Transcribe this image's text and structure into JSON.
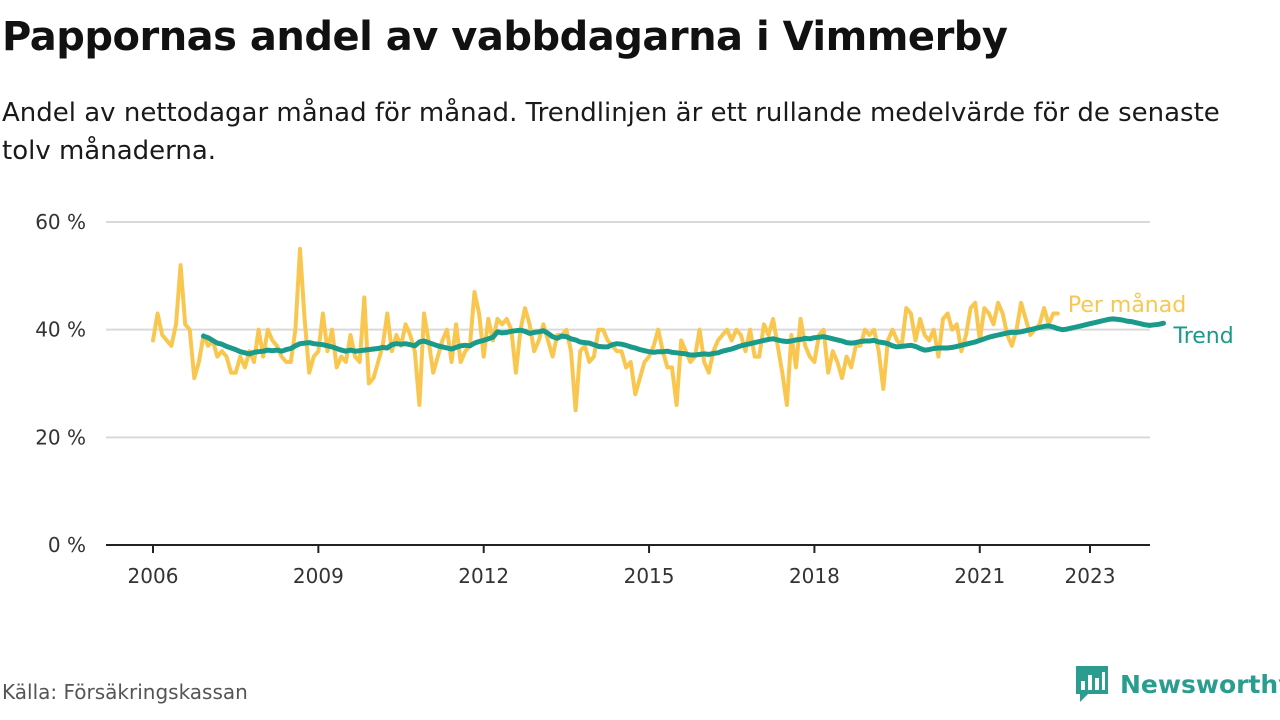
{
  "header": {
    "title": "Pappornas andel av vabbdagarna i Vimmerby",
    "subtitle": "Andel av nettodagar månad för månad. Trendlinjen är ett rullande medelvärde för de senaste tolv månaderna."
  },
  "footer": {
    "source": "Källa: Försäkringskassan",
    "brand": "Newsworthy",
    "brand_icon": "bar-chart-speech-bubble-icon"
  },
  "colors": {
    "monthly": "#f9c74f",
    "trend": "#1a9a8a",
    "grid": "#d9d9d9",
    "axis": "#222222",
    "brand": "#2a9d8f"
  },
  "chart_data": {
    "type": "line",
    "title": "Pappornas andel av vabbdagarna i Vimmerby",
    "subtitle": "Andel av nettodagar månad för månad. Trendlinjen är ett rullande medelvärde för de senaste tolv månaderna.",
    "xlabel": "",
    "ylabel": "",
    "ylim": [
      0,
      60
    ],
    "xlim": [
      2005.0,
      2024.1
    ],
    "y_ticks": [
      0,
      20,
      40,
      60
    ],
    "y_tick_labels": [
      "0 %",
      "20 %",
      "40 %",
      "60 %"
    ],
    "x_ticks": [
      2006,
      2009,
      2012,
      2015,
      2018,
      2021,
      2023
    ],
    "x_tick_labels": [
      "2006",
      "2009",
      "2012",
      "2015",
      "2018",
      "2021",
      "2023"
    ],
    "grid": "horizontal",
    "legend": "direct labels at right end of lines",
    "series": [
      {
        "name": "Per månad",
        "x_start": "2006-01",
        "frequency": "monthly",
        "values": [
          38,
          43,
          39,
          38,
          37,
          41,
          52,
          41,
          40,
          31,
          34,
          39,
          37,
          38,
          35,
          36,
          35,
          32,
          32,
          35,
          33,
          36,
          34,
          40,
          35,
          40,
          38,
          37,
          35,
          34,
          34,
          40,
          55,
          42,
          32,
          35,
          36,
          43,
          36,
          40,
          33,
          35,
          34,
          39,
          35,
          34,
          46,
          30,
          31,
          34,
          37,
          43,
          36,
          39,
          37,
          41,
          39,
          36,
          26,
          43,
          38,
          32,
          35,
          38,
          40,
          34,
          41,
          34,
          36,
          37,
          47,
          43,
          35,
          42,
          38,
          42,
          41,
          42,
          40,
          32,
          40,
          44,
          41,
          36,
          38,
          41,
          38,
          35,
          39,
          39,
          40,
          36,
          25,
          36,
          37,
          34,
          35,
          40,
          40,
          38,
          37,
          36,
          36,
          33,
          34,
          28,
          31,
          34,
          35,
          37,
          40,
          36,
          33,
          33,
          26,
          38,
          36,
          34,
          35,
          40,
          34,
          32,
          36,
          38,
          39,
          40,
          38,
          40,
          39,
          36,
          40,
          35,
          35,
          41,
          39,
          42,
          37,
          32,
          26,
          39,
          33,
          42,
          37,
          35,
          34,
          39,
          40,
          32,
          36,
          34,
          31,
          35,
          33,
          37,
          37,
          40,
          39,
          40,
          36,
          29,
          38,
          40,
          38,
          37,
          44,
          43,
          38,
          42,
          39,
          38,
          40,
          35,
          42,
          43,
          40,
          41,
          36,
          39,
          44,
          45,
          38,
          44,
          43,
          41,
          45,
          43,
          39,
          37,
          40,
          45,
          42,
          39,
          40,
          41,
          44,
          41,
          43,
          43
        ]
      },
      {
        "name": "Trend",
        "x_start": "2006-12",
        "frequency": "monthly",
        "values": [
          38.8,
          38.5,
          38.0,
          37.5,
          37.3,
          36.9,
          36.6,
          36.3,
          35.9,
          35.7,
          35.5,
          35.8,
          35.9,
          36.0,
          36.2,
          36.1,
          36.2,
          36.0,
          36.3,
          36.5,
          37.0,
          37.4,
          37.5,
          37.6,
          37.4,
          37.3,
          37.2,
          37.0,
          36.8,
          36.5,
          36.2,
          36.0,
          36.2,
          36.0,
          36.1,
          36.2,
          36.3,
          36.4,
          36.5,
          36.7,
          36.6,
          37.2,
          37.4,
          37.3,
          37.4,
          37.2,
          37.0,
          37.7,
          37.9,
          37.6,
          37.3,
          37.0,
          36.8,
          36.6,
          36.4,
          36.7,
          37.0,
          37.1,
          37.0,
          37.5,
          37.8,
          38.0,
          38.3,
          38.6,
          39.6,
          39.4,
          39.5,
          39.7,
          39.8,
          39.9,
          39.7,
          39.3,
          39.5,
          39.6,
          39.8,
          39.3,
          38.7,
          38.4,
          38.8,
          38.7,
          38.3,
          38.1,
          37.7,
          37.6,
          37.5,
          37.2,
          36.9,
          36.8,
          36.8,
          37.2,
          37.4,
          37.3,
          37.1,
          36.8,
          36.6,
          36.3,
          36.1,
          35.9,
          35.8,
          35.9,
          35.9,
          36.0,
          35.8,
          35.7,
          35.6,
          35.5,
          35.3,
          35.3,
          35.4,
          35.5,
          35.4,
          35.6,
          35.7,
          36.0,
          36.2,
          36.4,
          36.7,
          37.0,
          37.2,
          37.4,
          37.6,
          37.8,
          38.0,
          38.2,
          38.3,
          38.1,
          37.9,
          37.8,
          37.9,
          38.1,
          38.2,
          38.4,
          38.3,
          38.5,
          38.6,
          38.7,
          38.5,
          38.3,
          38.1,
          37.9,
          37.6,
          37.5,
          37.6,
          37.8,
          37.9,
          37.9,
          38.0,
          37.7,
          37.6,
          37.4,
          37.0,
          36.8,
          36.9,
          37.0,
          37.1,
          36.9,
          36.5,
          36.2,
          36.3,
          36.5,
          36.6,
          36.6,
          36.6,
          36.7,
          36.9,
          37.1,
          37.3,
          37.5,
          37.7,
          38.0,
          38.3,
          38.6,
          38.8,
          39.0,
          39.2,
          39.4,
          39.5,
          39.5,
          39.6,
          39.8,
          40.0,
          40.2,
          40.4,
          40.6,
          40.7,
          40.5,
          40.2,
          40.0,
          40.1,
          40.3,
          40.5,
          40.7,
          40.9,
          41.1,
          41.3,
          41.5,
          41.7,
          41.9,
          42.0,
          41.9,
          41.8,
          41.6,
          41.5,
          41.3,
          41.1,
          40.9,
          40.8,
          40.9,
          41.0,
          41.2
        ]
      }
    ]
  }
}
